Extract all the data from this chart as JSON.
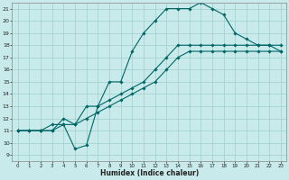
{
  "xlabel": "Humidex (Indice chaleur)",
  "background_color": "#c8eaea",
  "grid_color": "#a0cccc",
  "line_color": "#006666",
  "xlim": [
    -0.5,
    23.5
  ],
  "ylim": [
    8.5,
    21.5
  ],
  "yticks": [
    9,
    10,
    11,
    12,
    13,
    14,
    15,
    16,
    17,
    18,
    19,
    20,
    21
  ],
  "xticks": [
    0,
    1,
    2,
    3,
    4,
    5,
    6,
    7,
    8,
    9,
    10,
    11,
    12,
    13,
    14,
    15,
    16,
    17,
    18,
    19,
    20,
    21,
    22,
    23
  ],
  "line1_x": [
    0,
    1,
    2,
    3,
    4,
    5,
    6,
    7,
    8,
    9,
    10,
    11,
    12,
    13,
    14,
    15,
    16,
    17,
    18,
    19,
    20,
    21,
    22,
    23
  ],
  "line1_y": [
    11,
    11,
    11,
    11,
    11.5,
    9.5,
    9.8,
    13,
    15,
    15,
    17.5,
    19,
    20,
    21,
    21,
    21,
    21.5,
    21,
    20.5,
    19,
    18.5,
    18,
    18,
    17.5
  ],
  "line2_x": [
    0,
    1,
    2,
    3,
    4,
    5,
    6,
    7,
    8,
    9,
    10,
    11,
    12,
    13,
    14,
    15,
    16,
    17,
    18,
    19,
    20,
    21,
    22,
    23
  ],
  "line2_y": [
    11,
    11,
    11,
    11.5,
    11.5,
    11.5,
    13,
    13,
    13.5,
    14,
    14.5,
    15,
    16,
    17,
    18,
    18,
    18,
    18,
    18,
    18,
    18,
    18,
    18,
    18
  ],
  "line3_x": [
    0,
    1,
    2,
    3,
    4,
    5,
    6,
    7,
    8,
    9,
    10,
    11,
    12,
    13,
    14,
    15,
    16,
    17,
    18,
    19,
    20,
    21,
    22,
    23
  ],
  "line3_y": [
    11,
    11,
    11,
    11,
    12,
    11.5,
    12,
    12.5,
    13,
    13.5,
    14,
    14.5,
    15,
    16,
    17,
    17.5,
    17.5,
    17.5,
    17.5,
    17.5,
    17.5,
    17.5,
    17.5,
    17.5
  ]
}
